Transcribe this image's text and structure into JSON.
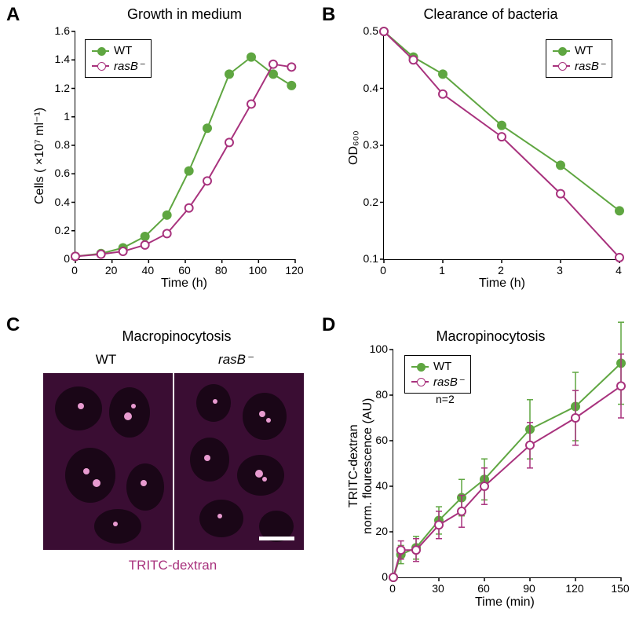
{
  "colors": {
    "wt": "#5fa641",
    "rasb": "#a8327d",
    "rasb_fill": "#ffffff",
    "micro_bg": "#3a0d33",
    "micro_cell": "#1a0617",
    "micro_spot": "#e89ad0",
    "axis": "#000000"
  },
  "panelA": {
    "label": "A",
    "title": "Growth in medium",
    "xlabel": "Time (h)",
    "ylabel": "Cells ( ×10⁷ ml⁻¹)",
    "xlim": [
      0,
      120
    ],
    "ylim": [
      0,
      1.6
    ],
    "xticks": [
      0,
      20,
      40,
      60,
      80,
      100,
      120
    ],
    "yticks": [
      0,
      0.2,
      0.4,
      0.6,
      0.8,
      1.0,
      1.2,
      1.4,
      1.6
    ],
    "series": {
      "WT": {
        "x": [
          0,
          14,
          26,
          38,
          50,
          62,
          72,
          84,
          96,
          108,
          118
        ],
        "y": [
          0.02,
          0.04,
          0.08,
          0.16,
          0.31,
          0.62,
          0.92,
          1.3,
          1.42,
          1.3,
          1.22
        ]
      },
      "rasB": {
        "x": [
          0,
          14,
          26,
          38,
          50,
          62,
          72,
          84,
          96,
          108,
          118
        ],
        "y": [
          0.02,
          0.035,
          0.055,
          0.1,
          0.18,
          0.36,
          0.55,
          0.82,
          1.09,
          1.37,
          1.35
        ]
      }
    },
    "legend": {
      "items": [
        "WT",
        "rasB⁻"
      ]
    }
  },
  "panelB": {
    "label": "B",
    "title": "Clearance of bacteria",
    "xlabel": "Time (h)",
    "ylabel": "OD₆₀₀",
    "xlim": [
      0,
      4
    ],
    "ylim": [
      0.1,
      0.5
    ],
    "xticks": [
      0,
      1,
      2,
      3,
      4
    ],
    "yticks": [
      0.1,
      0.2,
      0.3,
      0.4,
      0.5
    ],
    "series": {
      "WT": {
        "x": [
          0,
          0.5,
          1,
          2,
          3,
          4
        ],
        "y": [
          0.5,
          0.455,
          0.425,
          0.335,
          0.265,
          0.185
        ]
      },
      "rasB": {
        "x": [
          0,
          0.5,
          1,
          2,
          3,
          4
        ],
        "y": [
          0.5,
          0.45,
          0.39,
          0.315,
          0.215,
          0.103
        ]
      }
    },
    "legend": {
      "items": [
        "WT",
        "rasB⁻"
      ]
    }
  },
  "panelC": {
    "label": "C",
    "title": "Macropinocytosis",
    "left_label": "WT",
    "right_label": "rasB⁻",
    "bottom_label": "TRITC-dextran",
    "bottom_label_color": "#a8327d"
  },
  "panelD": {
    "label": "D",
    "title": "Macropinocytosis",
    "xlabel": "Time (min)",
    "ylabel": "TRITC-dextran\nnorm. flourescence (AU)",
    "n_label": "n=2",
    "xlim": [
      0,
      150
    ],
    "ylim": [
      0,
      100
    ],
    "xticks": [
      0,
      30,
      60,
      90,
      120,
      150
    ],
    "yticks": [
      0,
      20,
      40,
      60,
      80,
      100
    ],
    "series": {
      "WT": {
        "x": [
          0,
          5,
          15,
          30,
          45,
          60,
          90,
          120,
          150
        ],
        "y": [
          0,
          10,
          13,
          25,
          35,
          43,
          65,
          75,
          94
        ],
        "err": [
          0,
          4,
          5,
          6,
          8,
          9,
          13,
          15,
          18
        ]
      },
      "rasB": {
        "x": [
          0,
          5,
          15,
          30,
          45,
          60,
          90,
          120,
          150
        ],
        "y": [
          0,
          12,
          12,
          23,
          29,
          40,
          58,
          70,
          84
        ],
        "err": [
          0,
          4,
          5,
          6,
          7,
          8,
          10,
          12,
          14
        ]
      }
    },
    "legend": {
      "items": [
        "WT",
        "rasB⁻"
      ]
    }
  }
}
